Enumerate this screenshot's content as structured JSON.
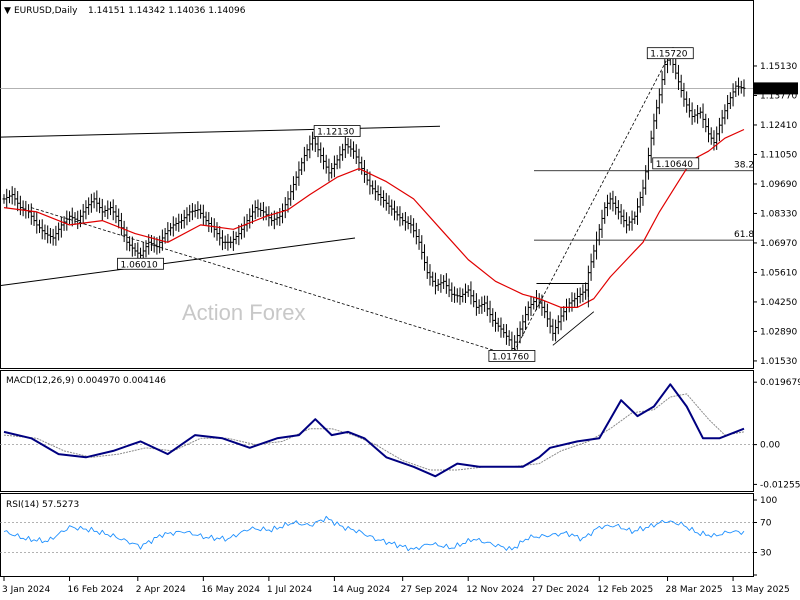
{
  "header": {
    "symbol": "EURUSD,Daily",
    "ohlc": "1.14151 1.14342 1.14036 1.14096",
    "macd_label": "MACD(12,26,9) 0.004970 0.004146",
    "rsi_label": "RSI(14) 57.5273"
  },
  "watermark": "Action Forex",
  "colors": {
    "price_bars": "#000000",
    "ma_line": "#e00000",
    "macd_line": "#000080",
    "signal_line": "#8c8c8c",
    "rsi_line": "#1e90ff",
    "grid_ref": "#999999"
  },
  "chart_data": [
    {
      "type": "ohlc",
      "title": "EURUSD,Daily",
      "ylim": [
        1.0125,
        1.1725
      ],
      "yticks": [
        "1.15130",
        "1.13770",
        "1.12410",
        "1.11050",
        "1.09690",
        "1.08330",
        "1.06970",
        "1.05610",
        "1.04250",
        "1.02890",
        "1.01530"
      ],
      "current_price": "1.14096",
      "x_categories": [
        "3 Jan 2024",
        "16 Feb 2024",
        "2 Apr 2024",
        "16 May 2024",
        "1 Jul 2024",
        "14 Aug 2024",
        "27 Sep 2024",
        "12 Nov 2024",
        "27 Dec 2024",
        "12 Feb 2025",
        "28 Mar 2025",
        "13 May 2025"
      ],
      "close_path": [
        [
          0,
          1.09
        ],
        [
          3,
          1.092
        ],
        [
          6,
          1.086
        ],
        [
          9,
          1.084
        ],
        [
          12,
          1.078
        ],
        [
          15,
          1.074
        ],
        [
          18,
          1.072
        ],
        [
          21,
          1.078
        ],
        [
          24,
          1.082
        ],
        [
          27,
          1.08
        ],
        [
          30,
          1.086
        ],
        [
          33,
          1.09
        ],
        [
          36,
          1.084
        ],
        [
          39,
          1.086
        ],
        [
          42,
          1.08
        ],
        [
          45,
          1.07
        ],
        [
          48,
          1.066
        ],
        [
          50,
          1.064
        ],
        [
          53,
          1.07
        ],
        [
          56,
          1.068
        ],
        [
          59,
          1.074
        ],
        [
          62,
          1.078
        ],
        [
          65,
          1.08
        ],
        [
          68,
          1.084
        ],
        [
          71,
          1.085
        ],
        [
          74,
          1.08
        ],
        [
          77,
          1.076
        ],
        [
          80,
          1.07
        ],
        [
          83,
          1.07
        ],
        [
          86,
          1.074
        ],
        [
          89,
          1.08
        ],
        [
          92,
          1.086
        ],
        [
          95,
          1.084
        ],
        [
          98,
          1.08
        ],
        [
          101,
          1.082
        ],
        [
          104,
          1.09
        ],
        [
          107,
          1.1
        ],
        [
          110,
          1.11
        ],
        [
          113,
          1.118
        ],
        [
          116,
          1.11
        ],
        [
          119,
          1.102
        ],
        [
          122,
          1.108
        ],
        [
          125,
          1.115
        ],
        [
          128,
          1.112
        ],
        [
          131,
          1.104
        ],
        [
          134,
          1.096
        ],
        [
          137,
          1.092
        ],
        [
          140,
          1.088
        ],
        [
          143,
          1.084
        ],
        [
          146,
          1.08
        ],
        [
          149,
          1.078
        ],
        [
          152,
          1.07
        ],
        [
          155,
          1.056
        ],
        [
          158,
          1.05
        ],
        [
          161,
          1.052
        ],
        [
          164,
          1.046
        ],
        [
          167,
          1.045
        ],
        [
          170,
          1.048
        ],
        [
          173,
          1.04
        ],
        [
          176,
          1.042
        ],
        [
          179,
          1.034
        ],
        [
          182,
          1.03
        ],
        [
          185,
          1.025
        ],
        [
          186,
          1.021
        ],
        [
          189,
          1.03
        ],
        [
          192,
          1.04
        ],
        [
          195,
          1.044
        ],
        [
          198,
          1.038
        ],
        [
          201,
          1.028
        ],
        [
          204,
          1.036
        ],
        [
          207,
          1.042
        ],
        [
          210,
          1.045
        ],
        [
          213,
          1.048
        ],
        [
          214,
          1.056
        ],
        [
          216,
          1.066
        ],
        [
          218,
          1.076
        ],
        [
          220,
          1.086
        ],
        [
          222,
          1.09
        ],
        [
          225,
          1.084
        ],
        [
          228,
          1.078
        ],
        [
          231,
          1.082
        ],
        [
          234,
          1.095
        ],
        [
          236,
          1.11
        ],
        [
          238,
          1.126
        ],
        [
          240,
          1.138
        ],
        [
          242,
          1.152
        ],
        [
          244,
          1.156
        ],
        [
          246,
          1.148
        ],
        [
          249,
          1.136
        ],
        [
          252,
          1.128
        ],
        [
          255,
          1.13
        ],
        [
          258,
          1.12
        ],
        [
          260,
          1.116
        ],
        [
          262,
          1.124
        ],
        [
          265,
          1.134
        ],
        [
          268,
          1.142
        ],
        [
          271,
          1.141
        ]
      ],
      "ma_path": [
        [
          0,
          1.086
        ],
        [
          12,
          1.084
        ],
        [
          24,
          1.078
        ],
        [
          36,
          1.08
        ],
        [
          48,
          1.074
        ],
        [
          60,
          1.07
        ],
        [
          72,
          1.078
        ],
        [
          84,
          1.076
        ],
        [
          96,
          1.082
        ],
        [
          104,
          1.085
        ],
        [
          112,
          1.092
        ],
        [
          122,
          1.1
        ],
        [
          130,
          1.104
        ],
        [
          140,
          1.098
        ],
        [
          150,
          1.09
        ],
        [
          160,
          1.076
        ],
        [
          170,
          1.062
        ],
        [
          180,
          1.052
        ],
        [
          190,
          1.046
        ],
        [
          196,
          1.044
        ],
        [
          204,
          1.04
        ],
        [
          210,
          1.04
        ],
        [
          216,
          1.044
        ],
        [
          222,
          1.054
        ],
        [
          228,
          1.062
        ],
        [
          234,
          1.07
        ],
        [
          240,
          1.084
        ],
        [
          246,
          1.096
        ],
        [
          252,
          1.108
        ],
        [
          258,
          1.112
        ],
        [
          264,
          1.118
        ],
        [
          271,
          1.122
        ]
      ],
      "levels": [
        {
          "label": "1.15720",
          "value": 1.1572,
          "x": 244
        },
        {
          "label": "1.12130",
          "value": 1.1213,
          "x": 122
        },
        {
          "label": "1.10640",
          "value": 1.1064,
          "x": 246
        },
        {
          "label": "1.06010",
          "value": 1.0601,
          "x": 50
        },
        {
          "label": "1.01760",
          "value": 1.0176,
          "x": 186
        }
      ],
      "fib_levels": [
        {
          "label": "38.2",
          "value": 1.103
        },
        {
          "label": "61.8",
          "value": 1.071
        }
      ]
    },
    {
      "type": "line",
      "title": "MACD(12,26,9)",
      "ylim": [
        -0.014,
        0.021
      ],
      "yticks": [
        "0.019679",
        "0.00",
        "-0.012552"
      ],
      "series": [
        {
          "name": "MACD",
          "values": [
            [
              0,
              0.004
            ],
            [
              10,
              0.002
            ],
            [
              20,
              -0.003
            ],
            [
              30,
              -0.004
            ],
            [
              40,
              -0.002
            ],
            [
              50,
              0.001
            ],
            [
              60,
              -0.003
            ],
            [
              70,
              0.003
            ],
            [
              80,
              0.002
            ],
            [
              90,
              -0.001
            ],
            [
              100,
              0.002
            ],
            [
              108,
              0.003
            ],
            [
              114,
              0.008
            ],
            [
              120,
              0.003
            ],
            [
              126,
              0.004
            ],
            [
              132,
              0.002
            ],
            [
              140,
              -0.004
            ],
            [
              150,
              -0.007
            ],
            [
              158,
              -0.01
            ],
            [
              166,
              -0.006
            ],
            [
              174,
              -0.007
            ],
            [
              182,
              -0.007
            ],
            [
              190,
              -0.007
            ],
            [
              196,
              -0.004
            ],
            [
              200,
              -0.001
            ],
            [
              210,
              0.001
            ],
            [
              218,
              0.002
            ],
            [
              226,
              0.014
            ],
            [
              232,
              0.009
            ],
            [
              238,
              0.012
            ],
            [
              244,
              0.019
            ],
            [
              250,
              0.012
            ],
            [
              256,
              0.002
            ],
            [
              262,
              0.002
            ],
            [
              271,
              0.005
            ]
          ]
        },
        {
          "name": "Signal",
          "values": [
            [
              0,
              0.003
            ],
            [
              12,
              0.002
            ],
            [
              22,
              -0.002
            ],
            [
              32,
              -0.004
            ],
            [
              42,
              -0.003
            ],
            [
              52,
              -0.001
            ],
            [
              62,
              -0.002
            ],
            [
              72,
              0.002
            ],
            [
              82,
              0.002
            ],
            [
              92,
              0.0
            ],
            [
              102,
              0.001
            ],
            [
              112,
              0.005
            ],
            [
              120,
              0.005
            ],
            [
              128,
              0.003
            ],
            [
              136,
              0.0
            ],
            [
              146,
              -0.005
            ],
            [
              156,
              -0.008
            ],
            [
              166,
              -0.008
            ],
            [
              176,
              -0.007
            ],
            [
              186,
              -0.007
            ],
            [
              196,
              -0.006
            ],
            [
              204,
              -0.002
            ],
            [
              214,
              0.001
            ],
            [
              222,
              0.005
            ],
            [
              230,
              0.01
            ],
            [
              238,
              0.011
            ],
            [
              244,
              0.015
            ],
            [
              250,
              0.016
            ],
            [
              258,
              0.008
            ],
            [
              264,
              0.003
            ],
            [
              271,
              0.004
            ]
          ]
        }
      ]
    },
    {
      "type": "line",
      "title": "RSI(14)",
      "ylim": [
        0,
        100
      ],
      "yticks": [
        "100",
        "70",
        "30",
        "0"
      ],
      "ref_levels": [
        70,
        30
      ],
      "series": [
        {
          "name": "RSI",
          "values": [
            [
              0,
              58
            ],
            [
              8,
              48
            ],
            [
              16,
              45
            ],
            [
              24,
              64
            ],
            [
              32,
              60
            ],
            [
              40,
              52
            ],
            [
              50,
              38
            ],
            [
              58,
              54
            ],
            [
              66,
              58
            ],
            [
              74,
              50
            ],
            [
              82,
              48
            ],
            [
              90,
              62
            ],
            [
              98,
              60
            ],
            [
              106,
              70
            ],
            [
              112,
              66
            ],
            [
              118,
              76
            ],
            [
              124,
              64
            ],
            [
              130,
              58
            ],
            [
              136,
              48
            ],
            [
              144,
              40
            ],
            [
              150,
              34
            ],
            [
              156,
              42
            ],
            [
              164,
              36
            ],
            [
              172,
              48
            ],
            [
              180,
              40
            ],
            [
              186,
              34
            ],
            [
              192,
              50
            ],
            [
              198,
              52
            ],
            [
              206,
              56
            ],
            [
              212,
              48
            ],
            [
              218,
              64
            ],
            [
              224,
              66
            ],
            [
              230,
              58
            ],
            [
              236,
              64
            ],
            [
              242,
              72
            ],
            [
              248,
              68
            ],
            [
              254,
              56
            ],
            [
              260,
              52
            ],
            [
              266,
              58
            ],
            [
              271,
              57
            ]
          ]
        }
      ]
    }
  ]
}
